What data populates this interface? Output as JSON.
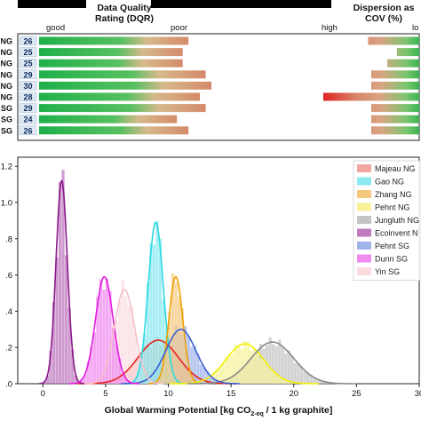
{
  "header": {
    "dqr_title": "Data Quality Rating (DQR)",
    "cov_title": "Dispersion as COV (%)",
    "dqr_good": "good",
    "dqr_poor": "poor",
    "cov_high": "high",
    "cov_low": "lo"
  },
  "chart_data": [
    {
      "type": "bar",
      "title": "Data Quality Rating (DQR)",
      "categories": [
        "NG",
        "NG",
        "NG",
        "NG",
        "NG",
        "NG",
        "SG",
        "SG",
        "SG"
      ],
      "values": [
        26,
        25,
        25,
        29,
        30,
        28,
        29,
        24,
        26
      ],
      "scale_labels": [
        "good",
        "poor"
      ],
      "gradient_colors": [
        "#1fb04b",
        "#d58a6a"
      ]
    },
    {
      "type": "bar",
      "title": "Dispersion as COV (%)",
      "categories": [
        "NG",
        "NG",
        "NG",
        "NG",
        "NG",
        "NG",
        "SG",
        "SG",
        "SG"
      ],
      "values": [
        16,
        7,
        10,
        15,
        15,
        30,
        15,
        15,
        15
      ],
      "scale_labels": [
        "high",
        "lo"
      ],
      "gradient_colors": [
        "#e01e1e",
        "#2fb24a"
      ]
    },
    {
      "type": "area",
      "xlabel": "Global Warming Potential [kg CO2-eq / 1 kg graphite]",
      "xlim": [
        -2,
        30
      ],
      "ylim": [
        0,
        1.25
      ],
      "xticks": [
        0,
        5,
        10,
        15,
        20,
        25,
        30
      ],
      "yticks": [
        0.0,
        0.2,
        0.4,
        0.6,
        0.8,
        1.0,
        1.2
      ],
      "ytick_labels": [
        ".0",
        ".2",
        ".4",
        ".6",
        ".8",
        "1.0",
        "1.2"
      ],
      "legend_position": "top-right",
      "series": [
        {
          "name": "Majeau NG",
          "mean": 9.2,
          "sd": 1.6,
          "peak": 0.24,
          "color": "#e8231e",
          "fill": "#f2a8a0"
        },
        {
          "name": "Gao NG",
          "mean": 9.0,
          "sd": 0.6,
          "peak": 0.89,
          "color": "#2ad9e0",
          "fill": "#8aeaf0"
        },
        {
          "name": "Zhang NG",
          "mean": 10.6,
          "sd": 0.55,
          "peak": 0.59,
          "color": "#f0a000",
          "fill": "#f5c880"
        },
        {
          "name": "Pehnt NG",
          "mean": 16.1,
          "sd": 1.5,
          "peak": 0.22,
          "color": "#f2f000",
          "fill": "#f5f29a"
        },
        {
          "name": "Jungluth NG",
          "mean": 18.3,
          "sd": 1.7,
          "peak": 0.23,
          "color": "#8a8a8a",
          "fill": "#c4c4c4"
        },
        {
          "name": "Ecoinvent NG",
          "mean": 1.5,
          "sd": 0.45,
          "peak": 1.12,
          "color": "#8a1a8a",
          "fill": "#c07ac0"
        },
        {
          "name": "Pehnt SG",
          "mean": 11.0,
          "sd": 1.2,
          "peak": 0.3,
          "color": "#3a5fd0",
          "fill": "#a0b4ec"
        },
        {
          "name": "Dunn SG",
          "mean": 4.9,
          "sd": 0.7,
          "peak": 0.59,
          "color": "#e619e0",
          "fill": "#f08cf0"
        },
        {
          "name": "Yin SG",
          "mean": 6.5,
          "sd": 0.8,
          "peak": 0.52,
          "color": "#f5c0c8",
          "fill": "#fadce0"
        }
      ],
      "legend_display": [
        "Majeau NG",
        "Gao NG",
        "Zhang NG",
        "Pehnt NG",
        "Jungluth NG",
        "Ecoinvent N",
        "Pehnt SG",
        "Dunn SG",
        "Yin SG"
      ]
    }
  ]
}
